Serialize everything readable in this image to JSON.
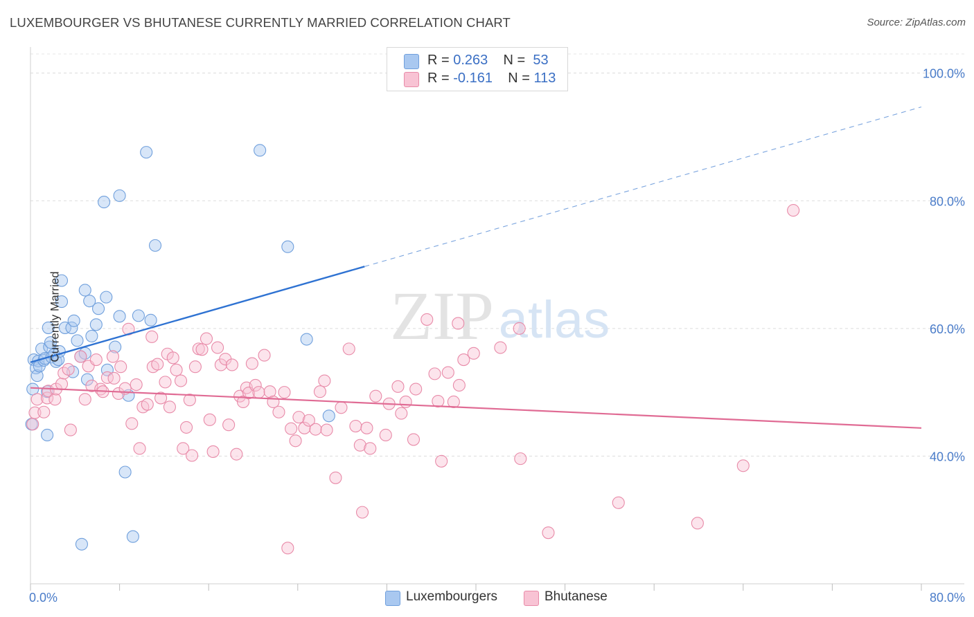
{
  "title": "LUXEMBOURGER VS BHUTANESE CURRENTLY MARRIED CORRELATION CHART",
  "source": "Source: ZipAtlas.com",
  "watermark": {
    "zip": "ZIP",
    "atlas": "atlas"
  },
  "legend": {
    "rows": [
      {
        "r_label": "R = ",
        "r_value": "0.263",
        "n_label": "N = ",
        "n_value": "53",
        "color": "#a9c8f0",
        "border": "#6f9fdc"
      },
      {
        "r_label": "R = ",
        "r_value": "-0.161",
        "n_label": "N = ",
        "n_value": "113",
        "color": "#f8c3d4",
        "border": "#e88aa8"
      }
    ]
  },
  "chart_data": {
    "type": "scatter",
    "title": "LUXEMBOURGER VS BHUTANESE CURRENTLY MARRIED CORRELATION CHART",
    "xlabel": "",
    "ylabel": "Currently Married",
    "xlim": [
      0,
      80
    ],
    "ylim": [
      20,
      103
    ],
    "x_tick_labels": [
      "0.0%",
      "80.0%"
    ],
    "y_ticks": [
      40,
      60,
      80,
      100
    ],
    "y_tick_labels": [
      "40.0%",
      "60.0%",
      "80.0%",
      "100.0%"
    ],
    "grid": true,
    "legend_placement": "top-center",
    "series": [
      {
        "name": "Luxembourgers",
        "color": "#6f9fdc",
        "fill": "#a9c8f0",
        "trend": {
          "x": [
            0,
            30
          ],
          "y": [
            54.7,
            69.7
          ],
          "extend_to_x": 80,
          "extend_to_y": 94.7
        },
        "points": [
          [
            0.2,
            50.5
          ],
          [
            0.3,
            55.1
          ],
          [
            0.5,
            53.8
          ],
          [
            0.6,
            52.6
          ],
          [
            0.7,
            54.9
          ],
          [
            0.8,
            54.1
          ],
          [
            1.0,
            56.8
          ],
          [
            1.2,
            55.0
          ],
          [
            1.3,
            55.3
          ],
          [
            1.5,
            50.1
          ],
          [
            1.5,
            43.3
          ],
          [
            1.6,
            60.1
          ],
          [
            1.7,
            57.1
          ],
          [
            1.8,
            57.8
          ],
          [
            1.9,
            55.5
          ],
          [
            2.1,
            55.9
          ],
          [
            2.3,
            54.8
          ],
          [
            2.5,
            55.1
          ],
          [
            2.6,
            56.4
          ],
          [
            2.8,
            64.2
          ],
          [
            2.8,
            67.5
          ],
          [
            3.1,
            60.1
          ],
          [
            3.7,
            60.1
          ],
          [
            3.8,
            53.2
          ],
          [
            3.9,
            61.2
          ],
          [
            4.2,
            58.1
          ],
          [
            4.5,
            55.6
          ],
          [
            4.6,
            26.2
          ],
          [
            4.9,
            66.0
          ],
          [
            4.9,
            56.1
          ],
          [
            5.1,
            52.0
          ],
          [
            5.3,
            64.3
          ],
          [
            5.5,
            58.8
          ],
          [
            5.9,
            60.6
          ],
          [
            6.1,
            63.1
          ],
          [
            6.6,
            79.8
          ],
          [
            6.8,
            64.9
          ],
          [
            6.9,
            53.5
          ],
          [
            7.6,
            57.1
          ],
          [
            8.0,
            61.9
          ],
          [
            8.0,
            80.8
          ],
          [
            8.5,
            37.5
          ],
          [
            8.8,
            49.5
          ],
          [
            9.2,
            27.4
          ],
          [
            9.7,
            62.0
          ],
          [
            10.4,
            87.6
          ],
          [
            10.8,
            61.3
          ],
          [
            11.2,
            73.0
          ],
          [
            20.6,
            87.9
          ],
          [
            23.1,
            72.8
          ],
          [
            24.8,
            58.3
          ],
          [
            26.8,
            46.3
          ],
          [
            0.1,
            45.0
          ]
        ]
      },
      {
        "name": "Bhutanese",
        "color": "#e88aa8",
        "fill": "#f8c3d4",
        "trend": {
          "x": [
            0,
            80
          ],
          "y": [
            50.7,
            44.4
          ]
        },
        "points": [
          [
            0.2,
            45.0
          ],
          [
            0.4,
            46.8
          ],
          [
            0.6,
            48.9
          ],
          [
            1.2,
            46.9
          ],
          [
            1.5,
            49.1
          ],
          [
            1.6,
            50.2
          ],
          [
            2.2,
            48.9
          ],
          [
            2.3,
            50.5
          ],
          [
            2.8,
            51.3
          ],
          [
            3.0,
            53.0
          ],
          [
            3.4,
            53.6
          ],
          [
            3.6,
            44.1
          ],
          [
            4.5,
            55.6
          ],
          [
            4.9,
            48.9
          ],
          [
            5.2,
            54.1
          ],
          [
            5.5,
            51.0
          ],
          [
            5.9,
            55.1
          ],
          [
            6.3,
            50.5
          ],
          [
            6.5,
            50.1
          ],
          [
            6.9,
            52.3
          ],
          [
            7.4,
            55.6
          ],
          [
            7.5,
            52.2
          ],
          [
            7.9,
            49.8
          ],
          [
            8.1,
            54.0
          ],
          [
            8.5,
            50.6
          ],
          [
            8.8,
            59.9
          ],
          [
            9.1,
            45.1
          ],
          [
            9.5,
            51.2
          ],
          [
            9.8,
            41.2
          ],
          [
            10.1,
            47.7
          ],
          [
            10.5,
            48.1
          ],
          [
            10.9,
            58.7
          ],
          [
            11.0,
            54.0
          ],
          [
            11.4,
            54.4
          ],
          [
            11.7,
            49.1
          ],
          [
            12.1,
            51.6
          ],
          [
            12.3,
            56.0
          ],
          [
            12.5,
            47.7
          ],
          [
            12.8,
            55.4
          ],
          [
            13.1,
            53.5
          ],
          [
            13.5,
            51.8
          ],
          [
            13.7,
            41.2
          ],
          [
            14.0,
            44.5
          ],
          [
            14.3,
            48.8
          ],
          [
            14.5,
            40.1
          ],
          [
            14.8,
            54.0
          ],
          [
            15.1,
            56.8
          ],
          [
            15.4,
            56.7
          ],
          [
            15.8,
            58.4
          ],
          [
            16.1,
            45.7
          ],
          [
            16.4,
            40.7
          ],
          [
            16.8,
            57.0
          ],
          [
            17.1,
            54.3
          ],
          [
            17.5,
            55.2
          ],
          [
            17.8,
            44.9
          ],
          [
            18.1,
            54.3
          ],
          [
            18.5,
            40.3
          ],
          [
            18.8,
            49.4
          ],
          [
            19.1,
            48.5
          ],
          [
            19.4,
            50.7
          ],
          [
            19.6,
            49.9
          ],
          [
            19.9,
            54.5
          ],
          [
            20.2,
            51.1
          ],
          [
            20.5,
            50.0
          ],
          [
            21.0,
            55.8
          ],
          [
            21.5,
            50.1
          ],
          [
            21.8,
            48.5
          ],
          [
            22.3,
            46.9
          ],
          [
            22.8,
            50.0
          ],
          [
            23.1,
            25.6
          ],
          [
            23.4,
            44.3
          ],
          [
            23.8,
            42.4
          ],
          [
            24.1,
            46.1
          ],
          [
            24.6,
            44.4
          ],
          [
            25.0,
            45.6
          ],
          [
            25.6,
            44.2
          ],
          [
            26.0,
            50.1
          ],
          [
            26.4,
            51.8
          ],
          [
            26.6,
            44.1
          ],
          [
            27.4,
            36.6
          ],
          [
            27.9,
            47.6
          ],
          [
            28.6,
            56.8
          ],
          [
            29.2,
            44.7
          ],
          [
            29.6,
            41.7
          ],
          [
            29.8,
            31.2
          ],
          [
            30.2,
            44.4
          ],
          [
            30.5,
            41.2
          ],
          [
            31.0,
            49.4
          ],
          [
            31.9,
            43.3
          ],
          [
            32.2,
            48.2
          ],
          [
            33.0,
            50.9
          ],
          [
            33.3,
            46.7
          ],
          [
            33.7,
            48.5
          ],
          [
            34.4,
            42.6
          ],
          [
            34.6,
            50.5
          ],
          [
            35.6,
            61.4
          ],
          [
            36.3,
            52.9
          ],
          [
            36.6,
            48.6
          ],
          [
            36.9,
            39.2
          ],
          [
            37.5,
            53.1
          ],
          [
            38.0,
            48.5
          ],
          [
            38.4,
            60.8
          ],
          [
            38.5,
            51.1
          ],
          [
            38.9,
            55.1
          ],
          [
            39.8,
            56.1
          ],
          [
            42.2,
            57.0
          ],
          [
            43.9,
            60.0
          ],
          [
            44.0,
            39.6
          ],
          [
            46.5,
            28.0
          ],
          [
            52.8,
            32.7
          ],
          [
            59.9,
            29.5
          ],
          [
            64.0,
            38.5
          ],
          [
            68.5,
            78.5
          ]
        ]
      }
    ]
  },
  "bottom_legend": [
    {
      "label": "Luxembourgers",
      "color": "#a9c8f0",
      "border": "#6f9fdc"
    },
    {
      "label": "Bhutanese",
      "color": "#f8c3d4",
      "border": "#e88aa8"
    }
  ]
}
